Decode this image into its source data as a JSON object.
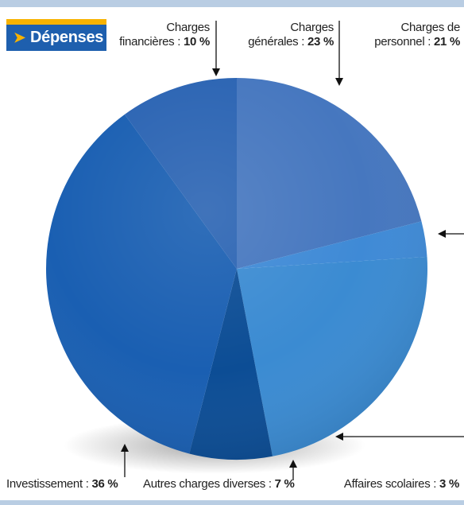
{
  "section_title": "Dépenses",
  "colors": {
    "badge": "#1e5fae",
    "accent": "#f7b200",
    "rule": "#b9cde3"
  },
  "chart_data": {
    "type": "pie",
    "slices": [
      {
        "label": "Charges de personnel",
        "value": 21,
        "value_text": "21 %",
        "color": "#4677bf"
      },
      {
        "label": "Affaires scolaires",
        "value": 3,
        "value_text": "3 %",
        "color": "#3f8ad6"
      },
      {
        "label": "Charges générales",
        "value": 23,
        "value_text": "23 %",
        "color": "#3b8bd2"
      },
      {
        "label": "Autres charges diverses",
        "value": 7,
        "value_text": "7 %",
        "color": "#0c4d95"
      },
      {
        "label": "Investissement",
        "value": 36,
        "value_text": "36 %",
        "color": "#1a5fb2"
      },
      {
        "label": "Charges financières",
        "value": 10,
        "value_text": "10 %",
        "color": "#2b64b3"
      }
    ]
  },
  "labels": {
    "financieres": {
      "line1": "Charges",
      "line2": "financières :",
      "value": "10 %"
    },
    "generales": {
      "line1": "Charges",
      "line2": "générales :",
      "value": "23 %"
    },
    "personnel": {
      "line1": "Charges de",
      "line2": "personnel :",
      "value": "21 %"
    },
    "investissement": {
      "text": "Investissement :",
      "value": "36 %"
    },
    "autres": {
      "text": "Autres charges diverses :",
      "value": "7 %"
    },
    "scolaires": {
      "text": "Affaires scolaires :",
      "value": "3 %"
    }
  }
}
